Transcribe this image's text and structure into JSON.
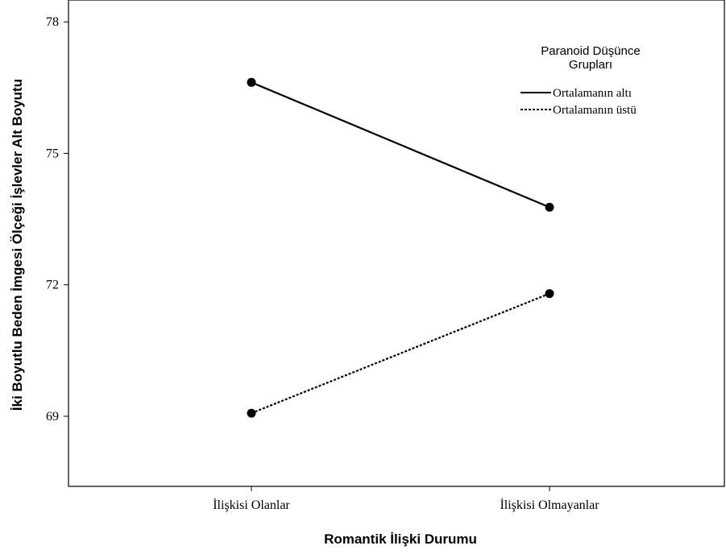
{
  "chart_data": {
    "type": "line",
    "title": "",
    "xlabel": "Romantik İlişki Durumu",
    "ylabel": "İki Boyutlu Beden İmgesi Ölçeği İşlevler Alt Boyutu",
    "categories": [
      "İlişkisi Olanlar",
      "İlişkisi Olmayanlar"
    ],
    "yticks": [
      69,
      72,
      75,
      78
    ],
    "ylim": [
      67.4,
      78.5
    ],
    "grid": false,
    "legend": {
      "title_line1": "Paranoid Düşünce",
      "title_line2": "Grupları",
      "placement": "top-right"
    },
    "series": [
      {
        "name": "Ortalamanın altı",
        "values": [
          76.62,
          73.77
        ],
        "style": "solid"
      },
      {
        "name": "Ortalamanın üstü",
        "values": [
          69.07,
          71.8
        ],
        "style": "dotted"
      }
    ]
  }
}
